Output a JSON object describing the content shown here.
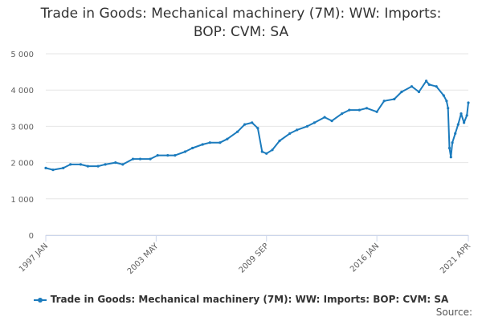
{
  "chart_data": {
    "type": "line",
    "title": "Trade in Goods: Mechanical machinery (7M): WW: Imports: BOP: CVM: SA",
    "title_lines": [
      "Trade in Goods: Mechanical machinery (7M): WW: Imports:",
      "BOP: CVM: SA"
    ],
    "xlabel": "",
    "ylabel": "",
    "ylim": [
      0,
      5000
    ],
    "y_ticks": [
      0,
      1000,
      2000,
      3000,
      4000,
      5000
    ],
    "y_tick_labels": [
      "0",
      "1 000",
      "2 000",
      "3 000",
      "4 000",
      "5 000"
    ],
    "x_range": [
      "1997-01",
      "2021-04"
    ],
    "x_tick_labels": [
      {
        "label": "1997 JAN",
        "date": "1997-01"
      },
      {
        "label": "2003 MAY",
        "date": "2003-05"
      },
      {
        "label": "2009 SEP",
        "date": "2009-09"
      },
      {
        "label": "2016 JAN",
        "date": "2016-01"
      },
      {
        "label": "2021 APR",
        "date": "2021-04"
      }
    ],
    "grid": true,
    "legend_position": "bottom",
    "colors": {
      "series": "#1b7bbd",
      "grid": "#e6e6e6",
      "axis": "#ccd6eb"
    },
    "series": [
      {
        "name": "Trade in Goods: Mechanical machinery (7M): WW: Imports: BOP: CVM: SA",
        "points": [
          [
            "1997-01",
            1850
          ],
          [
            "1997-06",
            1800
          ],
          [
            "1998-01",
            1850
          ],
          [
            "1998-06",
            1950
          ],
          [
            "1999-01",
            1950
          ],
          [
            "1999-06",
            1900
          ],
          [
            "2000-01",
            1900
          ],
          [
            "2000-06",
            1950
          ],
          [
            "2001-01",
            2000
          ],
          [
            "2001-06",
            1950
          ],
          [
            "2002-01",
            2100
          ],
          [
            "2002-06",
            2100
          ],
          [
            "2003-01",
            2100
          ],
          [
            "2003-06",
            2200
          ],
          [
            "2004-01",
            2200
          ],
          [
            "2004-06",
            2200
          ],
          [
            "2005-01",
            2300
          ],
          [
            "2005-06",
            2400
          ],
          [
            "2006-01",
            2500
          ],
          [
            "2006-06",
            2550
          ],
          [
            "2007-01",
            2550
          ],
          [
            "2007-06",
            2650
          ],
          [
            "2008-01",
            2850
          ],
          [
            "2008-06",
            3050
          ],
          [
            "2008-11",
            3100
          ],
          [
            "2009-03",
            2950
          ],
          [
            "2009-06",
            2300
          ],
          [
            "2009-09",
            2250
          ],
          [
            "2010-01",
            2350
          ],
          [
            "2010-06",
            2600
          ],
          [
            "2011-01",
            2800
          ],
          [
            "2011-06",
            2900
          ],
          [
            "2012-01",
            3000
          ],
          [
            "2012-06",
            3100
          ],
          [
            "2013-01",
            3250
          ],
          [
            "2013-06",
            3150
          ],
          [
            "2014-01",
            3350
          ],
          [
            "2014-06",
            3450
          ],
          [
            "2015-01",
            3450
          ],
          [
            "2015-06",
            3500
          ],
          [
            "2016-01",
            3400
          ],
          [
            "2016-06",
            3700
          ],
          [
            "2017-01",
            3750
          ],
          [
            "2017-06",
            3950
          ],
          [
            "2018-01",
            4100
          ],
          [
            "2018-06",
            3950
          ],
          [
            "2018-11",
            4250
          ],
          [
            "2019-01",
            4150
          ],
          [
            "2019-06",
            4100
          ],
          [
            "2019-11",
            3850
          ],
          [
            "2020-01",
            3700
          ],
          [
            "2020-02",
            3500
          ],
          [
            "2020-03",
            2400
          ],
          [
            "2020-04",
            2150
          ],
          [
            "2020-05",
            2550
          ],
          [
            "2020-07",
            2800
          ],
          [
            "2020-09",
            3050
          ],
          [
            "2020-11",
            3350
          ],
          [
            "2021-01",
            3100
          ],
          [
            "2021-03",
            3300
          ],
          [
            "2021-04",
            3650
          ]
        ]
      }
    ]
  },
  "legend": {
    "label": "Trade in Goods: Mechanical machinery (7M): WW: Imports: BOP: CVM: SA"
  },
  "source": {
    "label": "Source:"
  }
}
